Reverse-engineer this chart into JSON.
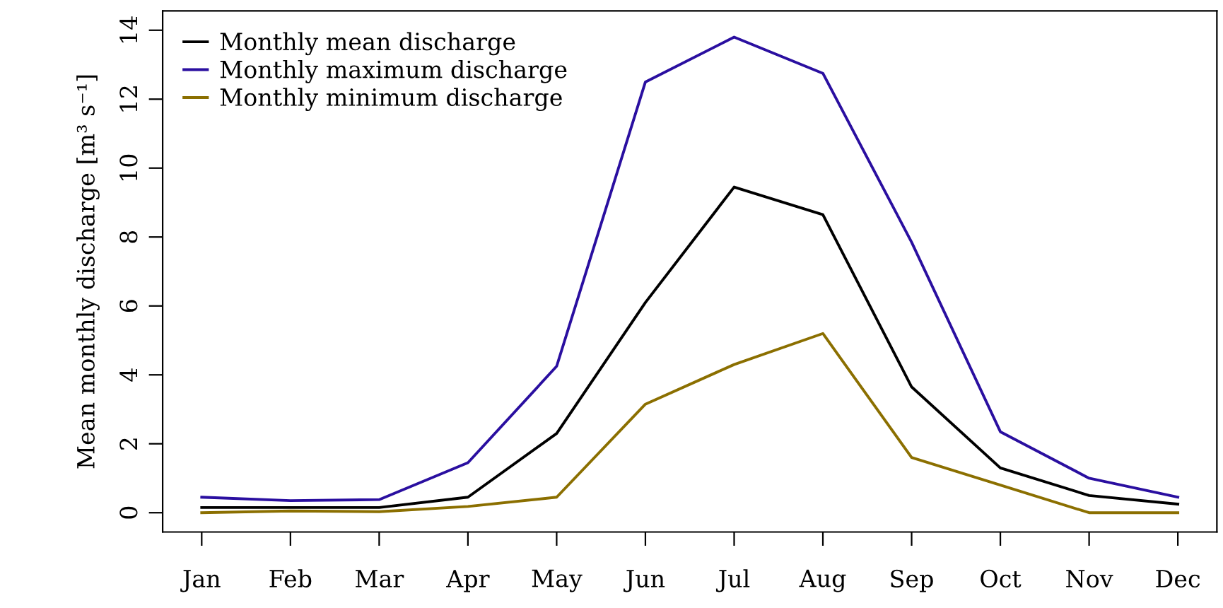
{
  "chart_data": {
    "type": "line",
    "ylabel": "Mean monthly discharge [m³ s⁻¹]",
    "categories": [
      "Jan",
      "Feb",
      "Mar",
      "Apr",
      "May",
      "Jun",
      "Jul",
      "Aug",
      "Sep",
      "Oct",
      "Nov",
      "Dec"
    ],
    "series": [
      {
        "name": "Monthly mean discharge",
        "color": "#000000",
        "values": [
          0.15,
          0.15,
          0.15,
          0.45,
          2.3,
          6.1,
          9.45,
          8.65,
          3.65,
          1.3,
          0.5,
          0.25
        ]
      },
      {
        "name": "Monthly maximum discharge",
        "color": "#2a0fa0",
        "values": [
          0.45,
          0.35,
          0.38,
          1.45,
          4.25,
          12.5,
          13.8,
          12.75,
          7.85,
          2.35,
          1.0,
          0.45
        ]
      },
      {
        "name": "Monthly minimum discharge",
        "color": "#8b6f00",
        "values": [
          0.0,
          0.05,
          0.03,
          0.18,
          0.45,
          3.15,
          4.3,
          5.2,
          1.6,
          0.8,
          0.0,
          0.0
        ]
      }
    ],
    "ylim": [
      -0.56,
      14.56
    ],
    "yticks": [
      0,
      2,
      4,
      6,
      8,
      10,
      12,
      14
    ],
    "legend": "top left",
    "grid": false,
    "marker": "none",
    "line_style": "solid"
  }
}
